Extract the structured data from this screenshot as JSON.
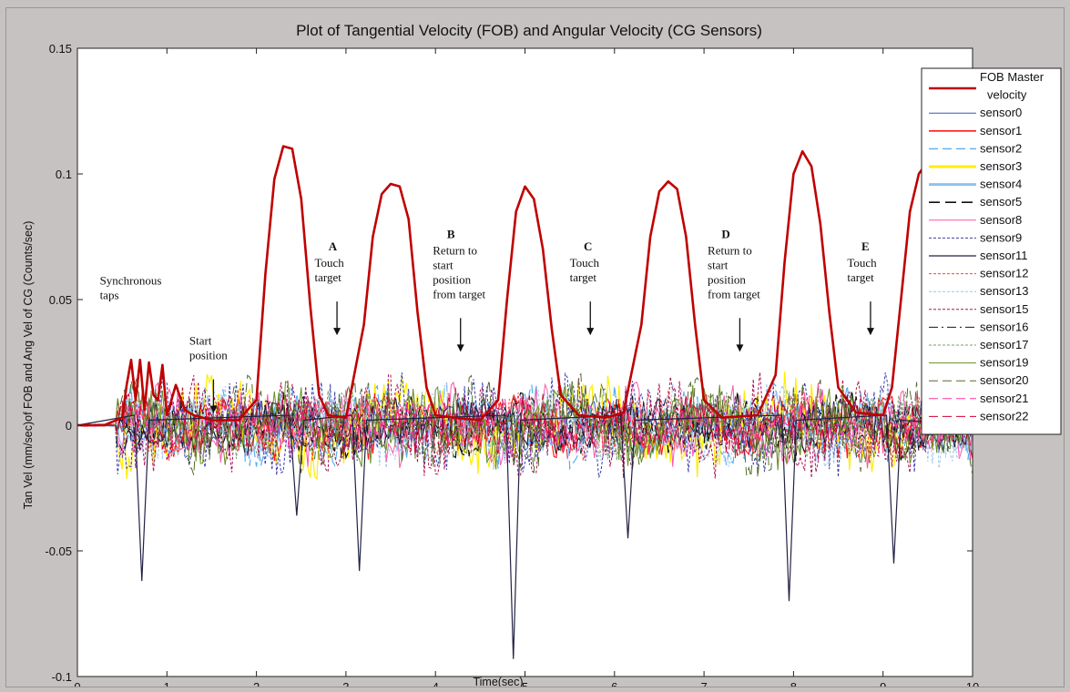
{
  "chart_data": {
    "type": "line",
    "title": "Plot of Tangential Velocity (FOB) and Angular Velocity (CG Sensors)",
    "xlabel": "Time(sec)",
    "ylabel": "Tan Vel (mm/sec)of FOB and Ang Vel of CG (Counts/sec)",
    "xlim": [
      0,
      10
    ],
    "ylim": [
      -0.1,
      0.15
    ],
    "x_ticks": [
      "0",
      "1",
      "2",
      "3",
      "4",
      "5",
      "6",
      "7",
      "8",
      "9",
      "10"
    ],
    "y_ticks": [
      "-0.1",
      "-0.05",
      "0",
      "0.05",
      "0.1",
      "0.15"
    ],
    "grid": false,
    "legend_position": "top-right",
    "legend": [
      {
        "label": "FOB Master velocity",
        "line1": "FOB Master",
        "line2": "velocity",
        "color": "#c00000",
        "width": 2.6,
        "dash": ""
      },
      {
        "label": "sensor0",
        "color": "#3355cc",
        "width": 1,
        "dash": ""
      },
      {
        "label": "sensor1",
        "color": "#ff1a1a",
        "width": 1.6,
        "dash": ""
      },
      {
        "label": "sensor2",
        "color": "#5aaef0",
        "width": 1.4,
        "dash": "10,5"
      },
      {
        "label": "sensor3",
        "color": "#ffee00",
        "width": 3,
        "dash": ""
      },
      {
        "label": "sensor4",
        "color": "#8cc4ee",
        "width": 3,
        "dash": ""
      },
      {
        "label": "sensor5",
        "color": "#111111",
        "width": 1.6,
        "dash": "12,6"
      },
      {
        "label": "sensor8",
        "color": "#ff55aa",
        "width": 1,
        "dash": ""
      },
      {
        "label": "sensor9",
        "color": "#3a3aaa",
        "width": 1,
        "dash": "3,2"
      },
      {
        "label": "sensor11",
        "color": "#222244",
        "width": 1.3,
        "dash": ""
      },
      {
        "label": "sensor12",
        "color": "#ff4040",
        "width": 1,
        "dash": "3,2"
      },
      {
        "label": "sensor13",
        "color": "#9fc5e8",
        "width": 1,
        "dash": "3,2"
      },
      {
        "label": "sensor15",
        "color": "#aa1155",
        "width": 1,
        "dash": "3,2"
      },
      {
        "label": "sensor16",
        "color": "#101030",
        "width": 1,
        "dash": "10,4,2,4"
      },
      {
        "label": "sensor17",
        "color": "#7aa060",
        "width": 1,
        "dash": "3,2"
      },
      {
        "label": "sensor19",
        "color": "#6b8e23",
        "width": 1,
        "dash": ""
      },
      {
        "label": "sensor20",
        "color": "#556b2f",
        "width": 1,
        "dash": "10,5"
      },
      {
        "label": "sensor21",
        "color": "#ff3399",
        "width": 1,
        "dash": "10,5"
      },
      {
        "label": "sensor22",
        "color": "#cc0033",
        "width": 1,
        "dash": "10,5"
      }
    ],
    "series": [
      {
        "name": "FOB Master velocity",
        "x": [
          0,
          0.3,
          0.5,
          0.55,
          0.6,
          0.65,
          0.7,
          0.75,
          0.8,
          0.85,
          0.9,
          0.95,
          1.0,
          1.1,
          1.2,
          1.3,
          1.5,
          1.8,
          2.0,
          2.1,
          2.2,
          2.3,
          2.4,
          2.5,
          2.6,
          2.7,
          2.8,
          3.0,
          3.2,
          3.3,
          3.4,
          3.5,
          3.6,
          3.7,
          3.8,
          3.9,
          4.0,
          4.2,
          4.5,
          4.7,
          4.8,
          4.9,
          5.0,
          5.1,
          5.2,
          5.3,
          5.4,
          5.6,
          5.9,
          6.1,
          6.3,
          6.4,
          6.5,
          6.6,
          6.7,
          6.8,
          6.9,
          7.0,
          7.2,
          7.6,
          7.8,
          7.9,
          8.0,
          8.1,
          8.2,
          8.3,
          8.4,
          8.5,
          8.7,
          9.0,
          9.1,
          9.2,
          9.3,
          9.4,
          9.5,
          9.6,
          9.65
        ],
        "y": [
          0,
          0,
          0.003,
          0.016,
          0.026,
          0.01,
          0.026,
          0.006,
          0.025,
          0.012,
          0.01,
          0.024,
          0.004,
          0.016,
          0.006,
          0.004,
          0.002,
          0.002,
          0.01,
          0.06,
          0.098,
          0.111,
          0.11,
          0.09,
          0.048,
          0.012,
          0.004,
          0.003,
          0.04,
          0.075,
          0.092,
          0.096,
          0.095,
          0.082,
          0.045,
          0.015,
          0.004,
          0.003,
          0.002,
          0.01,
          0.05,
          0.085,
          0.095,
          0.09,
          0.07,
          0.038,
          0.012,
          0.004,
          0.003,
          0.005,
          0.04,
          0.075,
          0.093,
          0.097,
          0.094,
          0.075,
          0.04,
          0.01,
          0.003,
          0.004,
          0.02,
          0.065,
          0.1,
          0.109,
          0.103,
          0.08,
          0.045,
          0.015,
          0.005,
          0.004,
          0.015,
          0.05,
          0.085,
          0.1,
          0.105,
          0.108,
          0.108
        ]
      }
    ],
    "annotations": [
      {
        "letter": "",
        "lines": [
          "Synchronous",
          "taps"
        ],
        "arrow": false,
        "x": 0.25,
        "y": 0.056
      },
      {
        "letter": "",
        "lines": [
          "Start",
          "position"
        ],
        "arrow": true,
        "x": 1.25,
        "y": 0.032,
        "arrow_x": 1.52
      },
      {
        "letter": "A",
        "lines": [
          "Touch",
          "target"
        ],
        "arrow": true,
        "x": 2.65,
        "y": 0.063,
        "arrow_x": 2.9
      },
      {
        "letter": "B",
        "lines": [
          "Return to",
          "start",
          "position",
          "from target"
        ],
        "arrow": true,
        "x": 3.97,
        "y": 0.068,
        "arrow_x": 4.28
      },
      {
        "letter": "C",
        "lines": [
          "Touch",
          "target"
        ],
        "arrow": true,
        "x": 5.5,
        "y": 0.063,
        "arrow_x": 5.73
      },
      {
        "letter": "D",
        "lines": [
          "Return to",
          "start",
          "position",
          "from target"
        ],
        "arrow": true,
        "x": 7.04,
        "y": 0.068,
        "arrow_x": 7.4
      },
      {
        "letter": "E",
        "lines": [
          "Touch",
          "target"
        ],
        "arrow": true,
        "x": 8.6,
        "y": 0.063,
        "arrow_x": 8.86
      }
    ]
  }
}
